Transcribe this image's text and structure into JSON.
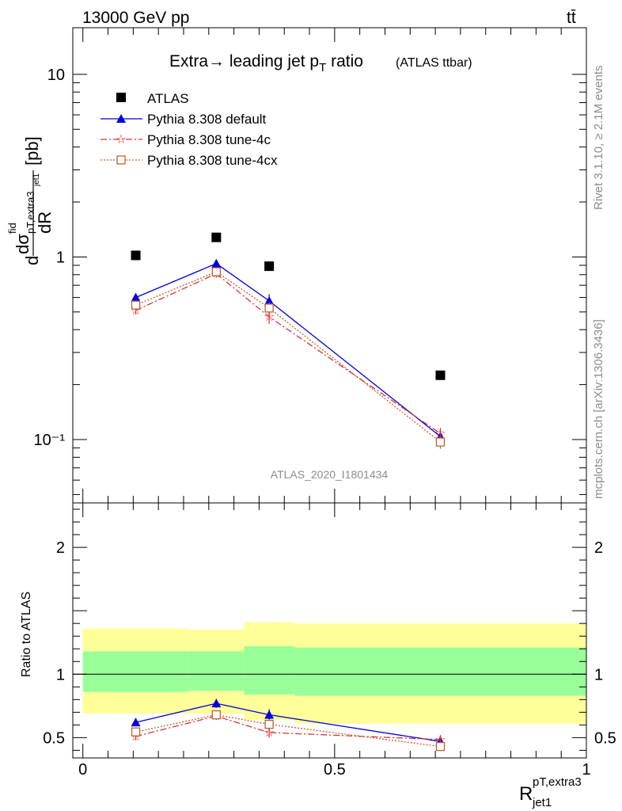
{
  "header": {
    "left": "13000 GeV pp",
    "right": "tt̄"
  },
  "side": {
    "rivet": "Rivet 3.1.10, ≥ 2.1M events",
    "mcplots": "mcplots.cern.ch [arXiv:1306.3436]"
  },
  "chart_data": [
    {
      "panel": "main",
      "type": "scatter",
      "title_main": "Extra→ leading jet p",
      "title_sub": "T",
      "title_after": " ratio",
      "title_small": "(ATLAS ttbar)",
      "ylabel_parts": {
        "d1": "d",
        "dsig": "dσ",
        "fid": "fid",
        "pt": "pT,extra3",
        "jet": "jet1",
        "dR": "dR",
        "unit": "[pb]"
      },
      "yscale": "log",
      "ylim": [
        0.045,
        18
      ],
      "yticks": [
        {
          "v": 0.1,
          "label": "10⁻¹"
        },
        {
          "v": 1,
          "label": "1"
        },
        {
          "v": 10,
          "label": "10"
        }
      ],
      "analysis_id": "ATLAS_2020_I1801434",
      "legend_position": "top-left",
      "x": [
        0.105,
        0.265,
        0.37,
        0.71
      ],
      "series": [
        {
          "name": "ATLAS",
          "color": "#000000",
          "marker": "square",
          "values": [
            1.02,
            1.28,
            0.89,
            0.225
          ],
          "errors": [
            0.0,
            0.0,
            0.0,
            0.0
          ]
        },
        {
          "name": "Pythia 8.308 default",
          "color": "#0000dd",
          "marker": "triangle",
          "line": "solid",
          "values": [
            0.6,
            0.92,
            0.575,
            0.104
          ],
          "errors": [
            0.03,
            0.05,
            0.05,
            0.008
          ]
        },
        {
          "name": "Pythia 8.308 tune-4c",
          "color": "#dd3333",
          "marker": "star",
          "line": "dashdot",
          "values": [
            0.51,
            0.81,
            0.47,
            0.108
          ],
          "errors": [
            0.025,
            0.04,
            0.04,
            0.008
          ]
        },
        {
          "name": "Pythia 8.308 tune-4cx",
          "color": "#c06030",
          "marker": "open-square",
          "line": "dotted",
          "values": [
            0.545,
            0.83,
            0.525,
            0.097
          ],
          "errors": [
            0.025,
            0.04,
            0.04,
            0.008
          ]
        }
      ]
    },
    {
      "panel": "ratio",
      "type": "scatter",
      "ylabel": "Ratio to ATLAS",
      "xlabel_main": "R",
      "xlabel_sup": "pT,extra3",
      "xlabel_sub": "jet1",
      "xlim": [
        -0.02,
        1.0
      ],
      "ylim": [
        0.34,
        2.35
      ],
      "xticks": [
        {
          "v": 0,
          "label": "0"
        },
        {
          "v": 0.5,
          "label": "0.5"
        },
        {
          "v": 1,
          "label": "1"
        }
      ],
      "yticks": [
        {
          "v": 0.5,
          "label": "0.5"
        },
        {
          "v": 1,
          "label": "1"
        },
        {
          "v": 2,
          "label": "2"
        }
      ],
      "bands": [
        {
          "x0": 0.0,
          "x1": 0.21,
          "yellow": [
            0.69,
            1.36
          ],
          "green": [
            0.86,
            1.18
          ]
        },
        {
          "x0": 0.21,
          "x1": 0.32,
          "yellow": [
            0.69,
            1.35
          ],
          "green": [
            0.87,
            1.18
          ]
        },
        {
          "x0": 0.32,
          "x1": 0.42,
          "yellow": [
            0.64,
            1.41
          ],
          "green": [
            0.84,
            1.22
          ]
        },
        {
          "x0": 0.42,
          "x1": 1.0,
          "yellow": [
            0.61,
            1.4
          ],
          "green": [
            0.83,
            1.21
          ]
        }
      ],
      "x": [
        0.105,
        0.265,
        0.37,
        0.71
      ],
      "series": [
        {
          "name": "Pythia 8.308 default",
          "color": "#0000dd",
          "marker": "triangle",
          "line": "solid",
          "values": [
            0.62,
            0.77,
            0.68,
            0.47
          ],
          "errors": [
            0.03,
            0.035,
            0.045,
            0.035
          ]
        },
        {
          "name": "Pythia 8.308 tune-4c",
          "color": "#dd3333",
          "marker": "star",
          "line": "dashdot",
          "values": [
            0.51,
            0.67,
            0.54,
            0.485
          ],
          "errors": [
            0.03,
            0.03,
            0.04,
            0.035
          ]
        },
        {
          "name": "Pythia 8.308 tune-4cx",
          "color": "#c06030",
          "marker": "open-square",
          "line": "dotted",
          "values": [
            0.545,
            0.68,
            0.605,
            0.43
          ],
          "errors": [
            0.03,
            0.03,
            0.04,
            0.035
          ]
        }
      ]
    }
  ]
}
